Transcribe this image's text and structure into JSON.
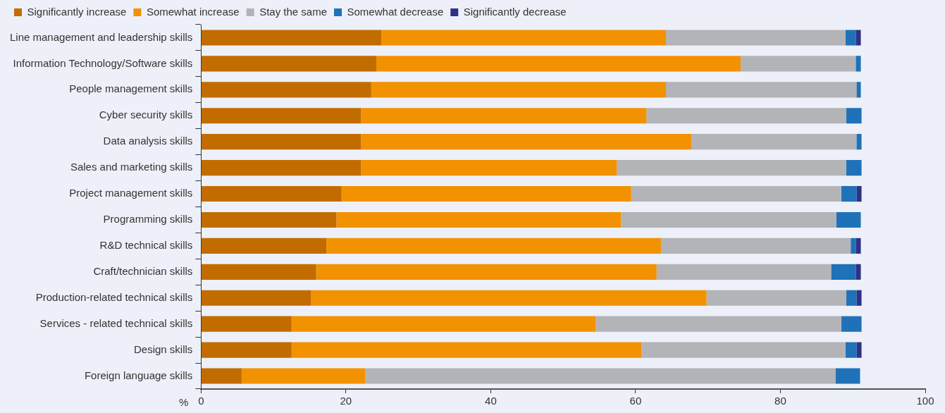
{
  "chart_data": {
    "type": "bar",
    "orientation": "horizontal",
    "stacked": true,
    "xlabel": "%",
    "categories": [
      "Line management and leadership skills",
      "Information Technology/Software skills",
      "People management skills",
      "Cyber security skills",
      "Data analysis skills",
      "Sales and marketing skills",
      "Project management skills",
      "Programming skills",
      "R&D technical skills",
      "Craft/technician skills",
      "Production-related technical skills",
      "Services - related technical skills",
      "Design skills",
      "Foreign language skills"
    ],
    "series": [
      {
        "name": "Significantly increase",
        "color": "#c26c00",
        "values": [
          24.9,
          24.2,
          23.5,
          22.1,
          22.1,
          22.1,
          19.4,
          18.7,
          17.3,
          15.9,
          15.2,
          12.5,
          12.5,
          5.6
        ]
      },
      {
        "name": "Somewhat increase",
        "color": "#f29200",
        "values": [
          39.3,
          50.3,
          40.7,
          39.4,
          45.6,
          35.3,
          40.0,
          39.3,
          46.2,
          47.0,
          54.6,
          42.0,
          48.3,
          17.1
        ]
      },
      {
        "name": "Stay the same",
        "color": "#b3b4b8",
        "values": [
          24.8,
          15.9,
          26.3,
          27.6,
          22.8,
          31.7,
          29.0,
          29.7,
          26.2,
          24.1,
          19.3,
          33.9,
          28.2,
          64.9
        ]
      },
      {
        "name": "Somewhat decrease",
        "color": "#1f72b8",
        "values": [
          1.4,
          0.7,
          0.6,
          2.1,
          0.7,
          2.1,
          2.1,
          3.4,
          0.7,
          3.4,
          1.4,
          2.8,
          1.5,
          3.4
        ]
      },
      {
        "name": "Significantly decrease",
        "color": "#2e3187",
        "values": [
          0.7,
          0,
          0,
          0,
          0,
          0,
          0.7,
          0,
          0.7,
          0.7,
          0.7,
          0,
          0.7,
          0
        ]
      }
    ],
    "xlim": [
      0,
      100
    ],
    "xticks": [
      0,
      20,
      40,
      60,
      80,
      100
    ],
    "grid": false,
    "legend": "top left"
  }
}
